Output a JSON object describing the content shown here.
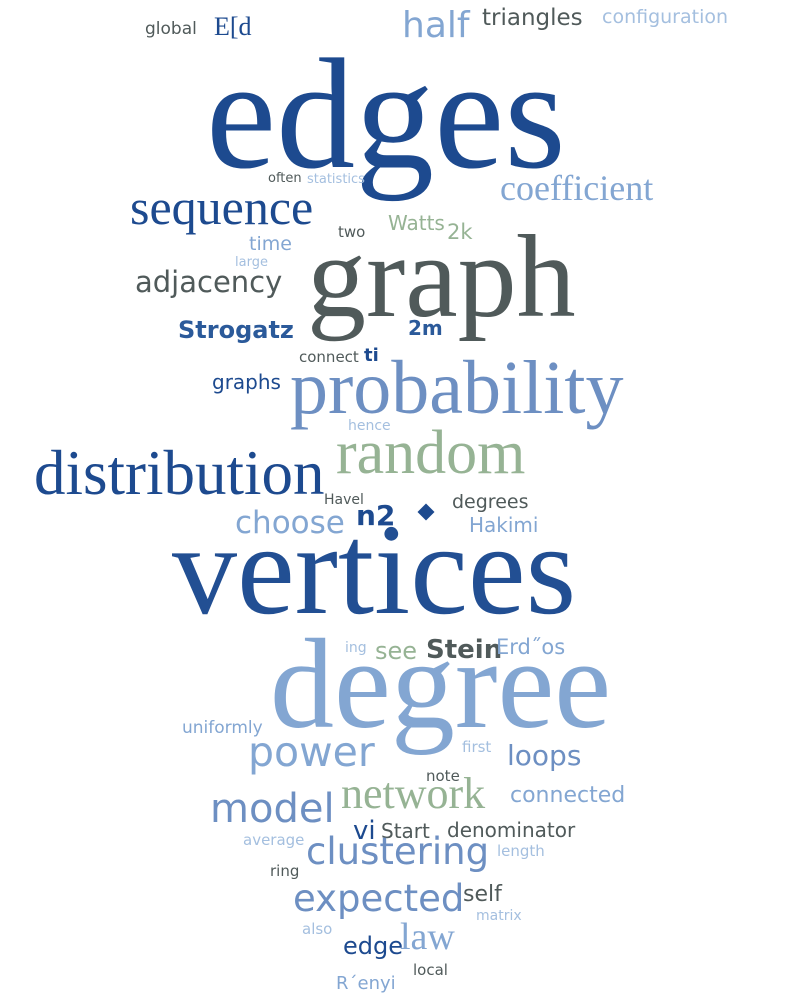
{
  "words": {
    "edges": "edges",
    "vertices": "vertices",
    "graph": "graph",
    "degree": "degree",
    "probability": "probability",
    "distribution": "distribution",
    "random": "random",
    "sequence": "sequence",
    "coefficient": "coefficient",
    "adjacency": "adjacency",
    "half": "half",
    "triangles": "triangles",
    "configuration": "configuration",
    "global": "global",
    "Ed": "E[d",
    "often": "often",
    "statistics": "statistics",
    "Watts": "Watts",
    "two": "two",
    "2k": "2k",
    "time": "time",
    "large": "large",
    "Strogatz": "Strogatz",
    "2m": "2m",
    "connect": "connect",
    "ti": "ti",
    "graphs": "graphs",
    "hence": "hence",
    "Havel": "Havel",
    "degrees": "degrees",
    "choose": "choose",
    "n2": "n2",
    "Hakimi": "Hakimi",
    "ing": "ing",
    "see": "see",
    "Stein": "Stein",
    "Erdos": "Erd˝os",
    "uniformly": "uniformly",
    "power": "power",
    "first": "first",
    "loops": "loops",
    "note": "note",
    "model": "model",
    "network": "network",
    "connected": "connected",
    "vi": "vi",
    "Start": "Start",
    "denominator": "denominator",
    "average": "average",
    "clustering": "clustering",
    "length": "length",
    "ring": "ring",
    "expected": "expected",
    "self": "self",
    "matrix": "matrix",
    "also": "also",
    "edge": "edge",
    "law": "law",
    "local": "local",
    "Renyi": "R´enyi"
  },
  "palette": {
    "dark_blue": "#1d4a8f",
    "gray": "#505a5a",
    "light_blue": "#83a6d2",
    "pale_blue": "#a4bfdf",
    "mid_blue": "#6d8fc2",
    "sage_green": "#96b394"
  }
}
